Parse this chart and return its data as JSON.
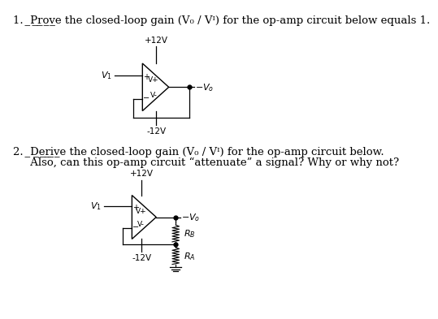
{
  "bg_color": "#ffffff",
  "text_color": "#000000",
  "font_size": 9.5,
  "line1": "1.  ̲P̲r̲o̲v̲e the closed-loop gain (V₀ / Vᴵ) for the op-amp circuit below equals 1.",
  "line2a": "2.  ̲D̲e̲r̲i̲v̲e the closed-loop gain (V₀ / Vᴵ) for the op-amp circuit below.",
  "line2b": "     Also, can this op-amp circuit “attenuate” a signal? Why or why not?",
  "plus12V": "+12V",
  "minus12V": "-12V",
  "Vplus": "V+",
  "Vminus": "V-",
  "Vo": "$-V_o$",
  "V1": "$V_1$",
  "RB": "$R_B$",
  "RA": "$R_A$"
}
